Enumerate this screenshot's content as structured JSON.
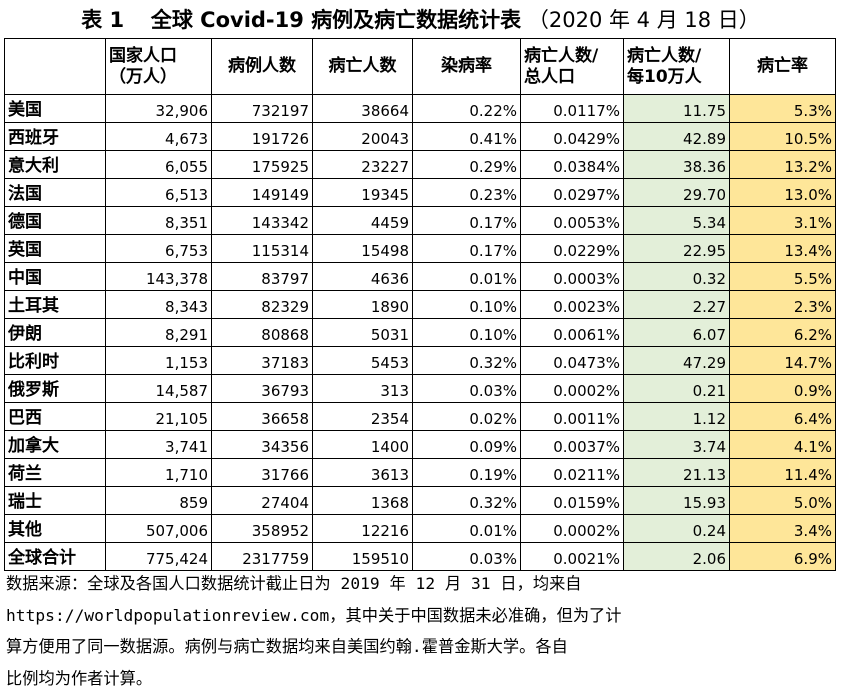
{
  "title": {
    "label": "表 1",
    "main": "全球 Covid-19 病例及病亡数据统计表",
    "date": "（2020 年 4 月 18 日）"
  },
  "table": {
    "headers": [
      {
        "l1": "",
        "l2": ""
      },
      {
        "l1": "国家人口",
        "l2": "（万人）"
      },
      {
        "l1": "病例人数",
        "l2": ""
      },
      {
        "l1": "病亡人数",
        "l2": ""
      },
      {
        "l1": "染病率",
        "l2": ""
      },
      {
        "l1": "病亡人数/",
        "l2": "总人口"
      },
      {
        "l1": "病亡人数/",
        "l2": "每10万人"
      },
      {
        "l1": "病亡率",
        "l2": ""
      }
    ],
    "rows": [
      [
        "美国",
        "32,906",
        "732197",
        "38664",
        "0.22%",
        "0.0117%",
        "11.75",
        "5.3%"
      ],
      [
        "西班牙",
        "4,673",
        "191726",
        "20043",
        "0.41%",
        "0.0429%",
        "42.89",
        "10.5%"
      ],
      [
        "意大利",
        "6,055",
        "175925",
        "23227",
        "0.29%",
        "0.0384%",
        "38.36",
        "13.2%"
      ],
      [
        "法国",
        "6,513",
        "149149",
        "19345",
        "0.23%",
        "0.0297%",
        "29.70",
        "13.0%"
      ],
      [
        "德国",
        "8,351",
        "143342",
        "4459",
        "0.17%",
        "0.0053%",
        "5.34",
        "3.1%"
      ],
      [
        "英国",
        "6,753",
        "115314",
        "15498",
        "0.17%",
        "0.0229%",
        "22.95",
        "13.4%"
      ],
      [
        "中国",
        "143,378",
        "83797",
        "4636",
        "0.01%",
        "0.0003%",
        "0.32",
        "5.5%"
      ],
      [
        "土耳其",
        "8,343",
        "82329",
        "1890",
        "0.10%",
        "0.0023%",
        "2.27",
        "2.3%"
      ],
      [
        "伊朗",
        "8,291",
        "80868",
        "5031",
        "0.10%",
        "0.0061%",
        "6.07",
        "6.2%"
      ],
      [
        "比利时",
        "1,153",
        "37183",
        "5453",
        "0.32%",
        "0.0473%",
        "47.29",
        "14.7%"
      ],
      [
        "俄罗斯",
        "14,587",
        "36793",
        "313",
        "0.03%",
        "0.0002%",
        "0.21",
        "0.9%"
      ],
      [
        "巴西",
        "21,105",
        "36658",
        "2354",
        "0.02%",
        "0.0011%",
        "1.12",
        "6.4%"
      ],
      [
        "加拿大",
        "3,741",
        "34356",
        "1400",
        "0.09%",
        "0.0037%",
        "3.74",
        "4.1%"
      ],
      [
        "荷兰",
        "1,710",
        "31766",
        "3613",
        "0.19%",
        "0.0211%",
        "21.13",
        "11.4%"
      ],
      [
        "瑞士",
        "859",
        "27404",
        "1368",
        "0.32%",
        "0.0159%",
        "15.93",
        "5.0%"
      ],
      [
        "其他",
        "507,006",
        "358952",
        "12216",
        "0.01%",
        "0.0002%",
        "0.24",
        "3.4%"
      ],
      [
        "全球合计",
        "775,424",
        "2317759",
        "159510",
        "0.03%",
        "0.0021%",
        "2.06",
        "6.9%"
      ]
    ]
  },
  "colors": {
    "per100k_column": "#e3efd9",
    "mortality_column": "#fee699"
  },
  "source_note": {
    "lines": [
      "数据来源：全球及各国人口数据统计截止日为 2019 年 12 月 31 日，均来自",
      "https://worldpopulationreview.com，其中关于中国数据未必准确，但为了计",
      "算方便用了同一数据源。病例与病亡数据均来自美国约翰.霍普金斯大学。各自",
      "比例均为作者计算。"
    ]
  }
}
